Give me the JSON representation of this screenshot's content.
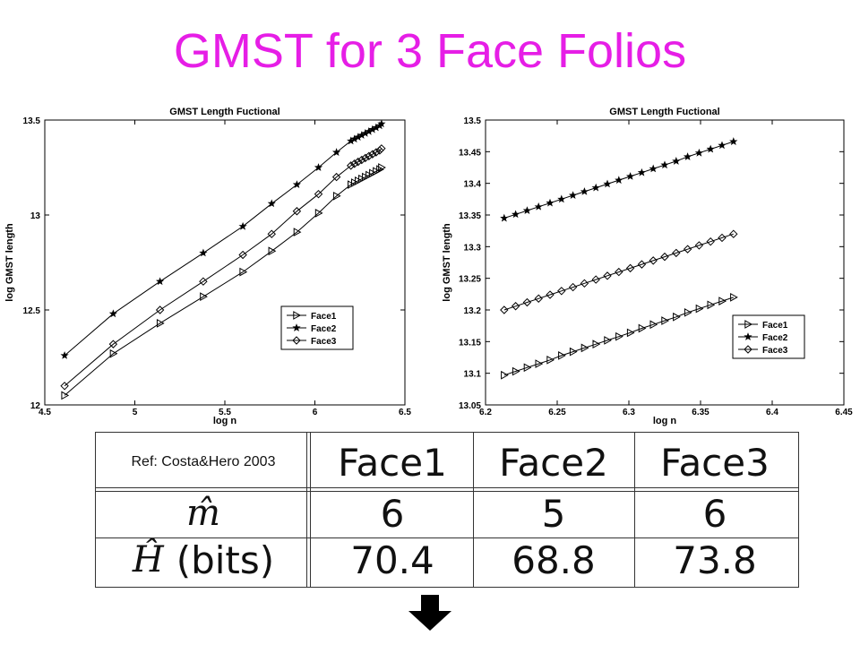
{
  "slide": {
    "title": "GMST for 3 Face Folios"
  },
  "chart_data": [
    {
      "type": "line",
      "title": "GMST Length Fuctional",
      "xlabel": "log n",
      "ylabel": "log GMST length",
      "xlim": [
        4.5,
        6.5
      ],
      "ylim": [
        12,
        13.5
      ],
      "xticks": [
        "4.5",
        "5",
        "5.5",
        "6",
        "6.5"
      ],
      "yticks": [
        "12",
        "12.5",
        "13",
        "13.5"
      ],
      "grid": false,
      "legend": "lower-right",
      "series": [
        {
          "name": "Face1",
          "marker": "triangle-right",
          "x": [
            4.61,
            4.88,
            5.14,
            5.38,
            5.6,
            5.76,
            5.9,
            6.02,
            6.12,
            6.2,
            6.22,
            6.24,
            6.26,
            6.28,
            6.3,
            6.32,
            6.34,
            6.36,
            6.37
          ],
          "y": [
            12.05,
            12.27,
            12.43,
            12.57,
            12.7,
            12.81,
            12.91,
            13.01,
            13.1,
            13.16,
            13.17,
            13.18,
            13.19,
            13.2,
            13.21,
            13.22,
            13.23,
            13.24,
            13.25
          ]
        },
        {
          "name": "Face2",
          "marker": "star",
          "x": [
            4.61,
            4.88,
            5.14,
            5.38,
            5.6,
            5.76,
            5.9,
            6.02,
            6.12,
            6.2,
            6.22,
            6.24,
            6.26,
            6.28,
            6.3,
            6.32,
            6.34,
            6.36,
            6.37
          ],
          "y": [
            12.26,
            12.48,
            12.65,
            12.8,
            12.94,
            13.06,
            13.16,
            13.25,
            13.33,
            13.39,
            13.4,
            13.41,
            13.42,
            13.43,
            13.44,
            13.45,
            13.46,
            13.47,
            13.48
          ]
        },
        {
          "name": "Face3",
          "marker": "diamond",
          "x": [
            4.61,
            4.88,
            5.14,
            5.38,
            5.6,
            5.76,
            5.9,
            6.02,
            6.12,
            6.2,
            6.22,
            6.24,
            6.26,
            6.28,
            6.3,
            6.32,
            6.34,
            6.36,
            6.37
          ],
          "y": [
            12.1,
            12.32,
            12.5,
            12.65,
            12.79,
            12.9,
            13.02,
            13.11,
            13.2,
            13.26,
            13.27,
            13.28,
            13.29,
            13.3,
            13.31,
            13.32,
            13.33,
            13.34,
            13.35
          ]
        }
      ]
    },
    {
      "type": "line",
      "title": "GMST Length Fuctional",
      "xlabel": "log n",
      "ylabel": "log GMST length",
      "xlim": [
        6.2,
        6.45
      ],
      "ylim": [
        13.05,
        13.5
      ],
      "xticks": [
        "6.2",
        "6.25",
        "6.3",
        "6.35",
        "6.4",
        "6.45"
      ],
      "yticks": [
        "13.05",
        "13.1",
        "13.15",
        "13.2",
        "13.25",
        "13.3",
        "13.35",
        "13.4",
        "13.45",
        "13.5"
      ],
      "grid": false,
      "legend": "lower-right",
      "series": [
        {
          "name": "Face1",
          "marker": "triangle-right",
          "x": [
            6.213,
            6.221,
            6.229,
            6.237,
            6.245,
            6.253,
            6.261,
            6.269,
            6.277,
            6.285,
            6.293,
            6.301,
            6.309,
            6.317,
            6.325,
            6.333,
            6.341,
            6.349,
            6.357,
            6.365,
            6.373
          ],
          "y": [
            13.097,
            13.103,
            13.109,
            13.115,
            13.121,
            13.128,
            13.134,
            13.14,
            13.146,
            13.152,
            13.158,
            13.164,
            13.171,
            13.177,
            13.183,
            13.189,
            13.196,
            13.202,
            13.208,
            13.214,
            13.22
          ]
        },
        {
          "name": "Face2",
          "marker": "star",
          "x": [
            6.213,
            6.221,
            6.229,
            6.237,
            6.245,
            6.253,
            6.261,
            6.269,
            6.277,
            6.285,
            6.293,
            6.301,
            6.309,
            6.317,
            6.325,
            6.333,
            6.341,
            6.349,
            6.357,
            6.365,
            6.373
          ],
          "y": [
            13.345,
            13.351,
            13.357,
            13.363,
            13.369,
            13.375,
            13.381,
            13.387,
            13.393,
            13.399,
            13.405,
            13.411,
            13.417,
            13.423,
            13.429,
            13.435,
            13.442,
            13.448,
            13.454,
            13.46,
            13.466
          ]
        },
        {
          "name": "Face3",
          "marker": "diamond",
          "x": [
            6.213,
            6.221,
            6.229,
            6.237,
            6.245,
            6.253,
            6.261,
            6.269,
            6.277,
            6.285,
            6.293,
            6.301,
            6.309,
            6.317,
            6.325,
            6.333,
            6.341,
            6.349,
            6.357,
            6.365,
            6.373
          ],
          "y": [
            13.2,
            13.206,
            13.212,
            13.218,
            13.224,
            13.23,
            13.236,
            13.242,
            13.248,
            13.254,
            13.26,
            13.266,
            13.272,
            13.278,
            13.284,
            13.29,
            13.296,
            13.302,
            13.308,
            13.314,
            13.32
          ]
        }
      ]
    }
  ],
  "table": {
    "reference": "Ref: Costa&Hero 2003",
    "columns": [
      "Face1",
      "Face2",
      "Face3"
    ],
    "rows": [
      {
        "label": "m̂",
        "values": [
          "6",
          "5",
          "6"
        ]
      },
      {
        "label_symbol": "Ĥ",
        "label_unit": "(bits)",
        "values": [
          "70.4",
          "68.8",
          "73.8"
        ]
      }
    ]
  },
  "colors": {
    "title": "#e61ee6",
    "ink": "#111111"
  },
  "icons": {
    "next": "down-arrow-icon"
  }
}
